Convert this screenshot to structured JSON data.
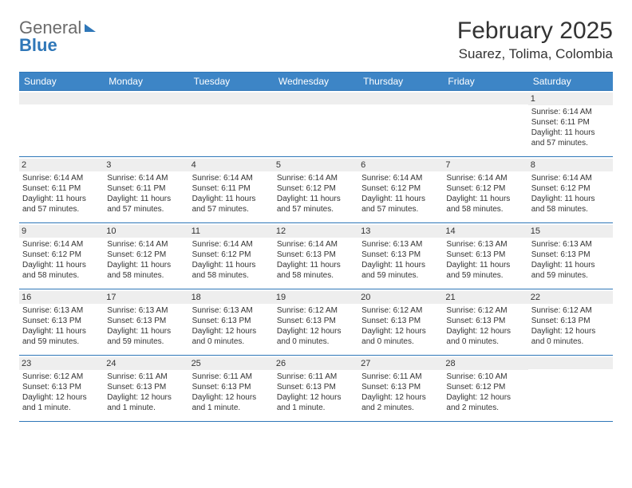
{
  "logo": {
    "general": "General",
    "blue": "Blue"
  },
  "title": "February 2025",
  "location": "Suarez, Tolima, Colombia",
  "colors": {
    "header_bg": "#3d85c6",
    "border": "#2f77b8",
    "daynum_bg": "#eeeeee",
    "text": "#333333",
    "logo_gray": "#6b6b6b",
    "logo_blue": "#2f77b8"
  },
  "typography": {
    "title_fontsize": 30,
    "location_fontsize": 17,
    "dayheader_fontsize": 12,
    "cell_fontsize": 10,
    "daynum_fontsize": 11
  },
  "day_headers": [
    "Sunday",
    "Monday",
    "Tuesday",
    "Wednesday",
    "Thursday",
    "Friday",
    "Saturday"
  ],
  "weeks": [
    [
      {
        "day": "",
        "sunrise": "",
        "sunset": "",
        "daylight1": "",
        "daylight2": "",
        "empty": true
      },
      {
        "day": "",
        "sunrise": "",
        "sunset": "",
        "daylight1": "",
        "daylight2": "",
        "empty": true
      },
      {
        "day": "",
        "sunrise": "",
        "sunset": "",
        "daylight1": "",
        "daylight2": "",
        "empty": true
      },
      {
        "day": "",
        "sunrise": "",
        "sunset": "",
        "daylight1": "",
        "daylight2": "",
        "empty": true
      },
      {
        "day": "",
        "sunrise": "",
        "sunset": "",
        "daylight1": "",
        "daylight2": "",
        "empty": true
      },
      {
        "day": "",
        "sunrise": "",
        "sunset": "",
        "daylight1": "",
        "daylight2": "",
        "empty": true
      },
      {
        "day": "1",
        "sunrise": "Sunrise: 6:14 AM",
        "sunset": "Sunset: 6:11 PM",
        "daylight1": "Daylight: 11 hours",
        "daylight2": "and 57 minutes."
      }
    ],
    [
      {
        "day": "2",
        "sunrise": "Sunrise: 6:14 AM",
        "sunset": "Sunset: 6:11 PM",
        "daylight1": "Daylight: 11 hours",
        "daylight2": "and 57 minutes."
      },
      {
        "day": "3",
        "sunrise": "Sunrise: 6:14 AM",
        "sunset": "Sunset: 6:11 PM",
        "daylight1": "Daylight: 11 hours",
        "daylight2": "and 57 minutes."
      },
      {
        "day": "4",
        "sunrise": "Sunrise: 6:14 AM",
        "sunset": "Sunset: 6:11 PM",
        "daylight1": "Daylight: 11 hours",
        "daylight2": "and 57 minutes."
      },
      {
        "day": "5",
        "sunrise": "Sunrise: 6:14 AM",
        "sunset": "Sunset: 6:12 PM",
        "daylight1": "Daylight: 11 hours",
        "daylight2": "and 57 minutes."
      },
      {
        "day": "6",
        "sunrise": "Sunrise: 6:14 AM",
        "sunset": "Sunset: 6:12 PM",
        "daylight1": "Daylight: 11 hours",
        "daylight2": "and 57 minutes."
      },
      {
        "day": "7",
        "sunrise": "Sunrise: 6:14 AM",
        "sunset": "Sunset: 6:12 PM",
        "daylight1": "Daylight: 11 hours",
        "daylight2": "and 58 minutes."
      },
      {
        "day": "8",
        "sunrise": "Sunrise: 6:14 AM",
        "sunset": "Sunset: 6:12 PM",
        "daylight1": "Daylight: 11 hours",
        "daylight2": "and 58 minutes."
      }
    ],
    [
      {
        "day": "9",
        "sunrise": "Sunrise: 6:14 AM",
        "sunset": "Sunset: 6:12 PM",
        "daylight1": "Daylight: 11 hours",
        "daylight2": "and 58 minutes."
      },
      {
        "day": "10",
        "sunrise": "Sunrise: 6:14 AM",
        "sunset": "Sunset: 6:12 PM",
        "daylight1": "Daylight: 11 hours",
        "daylight2": "and 58 minutes."
      },
      {
        "day": "11",
        "sunrise": "Sunrise: 6:14 AM",
        "sunset": "Sunset: 6:12 PM",
        "daylight1": "Daylight: 11 hours",
        "daylight2": "and 58 minutes."
      },
      {
        "day": "12",
        "sunrise": "Sunrise: 6:14 AM",
        "sunset": "Sunset: 6:13 PM",
        "daylight1": "Daylight: 11 hours",
        "daylight2": "and 58 minutes."
      },
      {
        "day": "13",
        "sunrise": "Sunrise: 6:13 AM",
        "sunset": "Sunset: 6:13 PM",
        "daylight1": "Daylight: 11 hours",
        "daylight2": "and 59 minutes."
      },
      {
        "day": "14",
        "sunrise": "Sunrise: 6:13 AM",
        "sunset": "Sunset: 6:13 PM",
        "daylight1": "Daylight: 11 hours",
        "daylight2": "and 59 minutes."
      },
      {
        "day": "15",
        "sunrise": "Sunrise: 6:13 AM",
        "sunset": "Sunset: 6:13 PM",
        "daylight1": "Daylight: 11 hours",
        "daylight2": "and 59 minutes."
      }
    ],
    [
      {
        "day": "16",
        "sunrise": "Sunrise: 6:13 AM",
        "sunset": "Sunset: 6:13 PM",
        "daylight1": "Daylight: 11 hours",
        "daylight2": "and 59 minutes."
      },
      {
        "day": "17",
        "sunrise": "Sunrise: 6:13 AM",
        "sunset": "Sunset: 6:13 PM",
        "daylight1": "Daylight: 11 hours",
        "daylight2": "and 59 minutes."
      },
      {
        "day": "18",
        "sunrise": "Sunrise: 6:13 AM",
        "sunset": "Sunset: 6:13 PM",
        "daylight1": "Daylight: 12 hours",
        "daylight2": "and 0 minutes."
      },
      {
        "day": "19",
        "sunrise": "Sunrise: 6:12 AM",
        "sunset": "Sunset: 6:13 PM",
        "daylight1": "Daylight: 12 hours",
        "daylight2": "and 0 minutes."
      },
      {
        "day": "20",
        "sunrise": "Sunrise: 6:12 AM",
        "sunset": "Sunset: 6:13 PM",
        "daylight1": "Daylight: 12 hours",
        "daylight2": "and 0 minutes."
      },
      {
        "day": "21",
        "sunrise": "Sunrise: 6:12 AM",
        "sunset": "Sunset: 6:13 PM",
        "daylight1": "Daylight: 12 hours",
        "daylight2": "and 0 minutes."
      },
      {
        "day": "22",
        "sunrise": "Sunrise: 6:12 AM",
        "sunset": "Sunset: 6:13 PM",
        "daylight1": "Daylight: 12 hours",
        "daylight2": "and 0 minutes."
      }
    ],
    [
      {
        "day": "23",
        "sunrise": "Sunrise: 6:12 AM",
        "sunset": "Sunset: 6:13 PM",
        "daylight1": "Daylight: 12 hours",
        "daylight2": "and 1 minute."
      },
      {
        "day": "24",
        "sunrise": "Sunrise: 6:11 AM",
        "sunset": "Sunset: 6:13 PM",
        "daylight1": "Daylight: 12 hours",
        "daylight2": "and 1 minute."
      },
      {
        "day": "25",
        "sunrise": "Sunrise: 6:11 AM",
        "sunset": "Sunset: 6:13 PM",
        "daylight1": "Daylight: 12 hours",
        "daylight2": "and 1 minute."
      },
      {
        "day": "26",
        "sunrise": "Sunrise: 6:11 AM",
        "sunset": "Sunset: 6:13 PM",
        "daylight1": "Daylight: 12 hours",
        "daylight2": "and 1 minute."
      },
      {
        "day": "27",
        "sunrise": "Sunrise: 6:11 AM",
        "sunset": "Sunset: 6:13 PM",
        "daylight1": "Daylight: 12 hours",
        "daylight2": "and 2 minutes."
      },
      {
        "day": "28",
        "sunrise": "Sunrise: 6:10 AM",
        "sunset": "Sunset: 6:12 PM",
        "daylight1": "Daylight: 12 hours",
        "daylight2": "and 2 minutes."
      },
      {
        "day": "",
        "sunrise": "",
        "sunset": "",
        "daylight1": "",
        "daylight2": "",
        "empty": true
      }
    ]
  ]
}
